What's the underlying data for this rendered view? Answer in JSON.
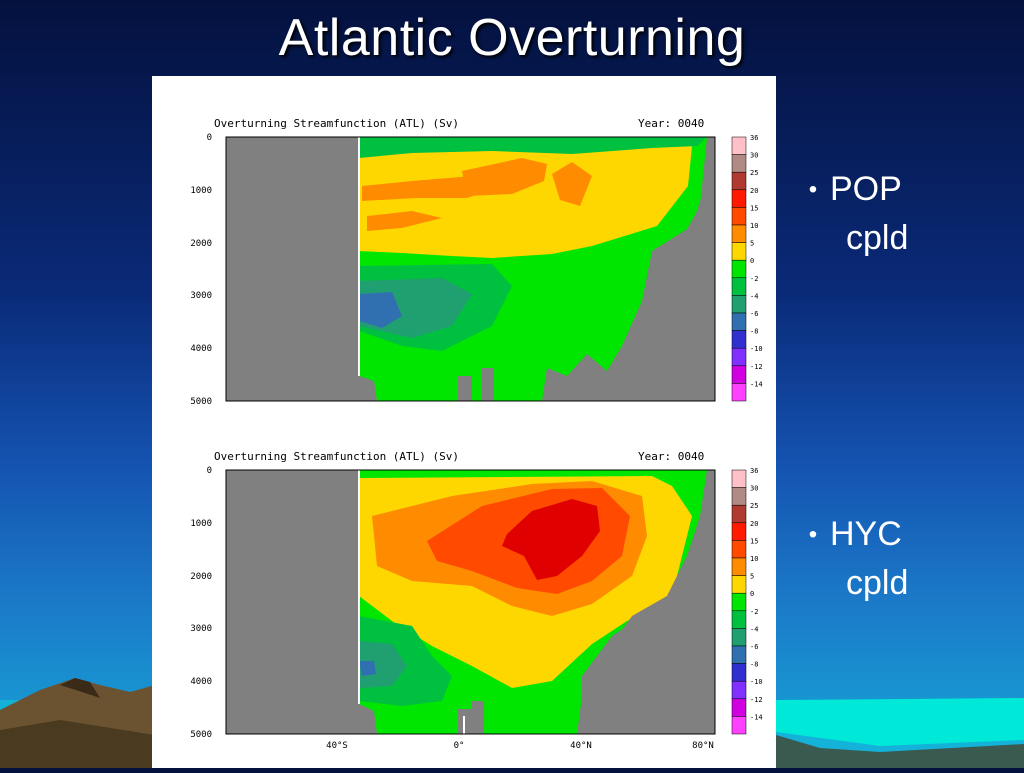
{
  "slide": {
    "title": "Atlantic Overturning"
  },
  "bullets": [
    {
      "label": "POP",
      "sub": "cpld"
    },
    {
      "label": "HYC",
      "sub": "cpld"
    }
  ],
  "panels": [
    {
      "title": "Overturning Streamfunction (ATL) (Sv)",
      "year_label": "Year: 0040",
      "y_ticks": [
        "0",
        "1000",
        "2000",
        "3000",
        "4000",
        "5000"
      ],
      "colorbar_labels": [
        "36",
        "30",
        "25",
        "20",
        "15",
        "10",
        "5",
        "0",
        "-2",
        "-4",
        "-6",
        "-8",
        "-10",
        "-12",
        "-14"
      ]
    },
    {
      "title": "Overturning Streamfunction (ATL) (Sv)",
      "year_label": "Year: 0040",
      "y_ticks": [
        "0",
        "1000",
        "2000",
        "3000",
        "4000",
        "5000"
      ],
      "x_ticks": [
        "40°S",
        "0°",
        "40°N",
        "80°N"
      ],
      "colorbar_labels": [
        "36",
        "30",
        "25",
        "20",
        "15",
        "10",
        "5",
        "0",
        "-2",
        "-4",
        "-6",
        "-8",
        "-10",
        "-12",
        "-14"
      ]
    }
  ],
  "colors": {
    "land": "#808080",
    "scale": [
      "#ffc0c8",
      "#b08a84",
      "#b03a30",
      "#ff1a00",
      "#ff4a00",
      "#ff8c00",
      "#ffd700",
      "#00e600",
      "#00c040",
      "#20a070",
      "#3070b0",
      "#3030d0",
      "#8030ff",
      "#d000e0",
      "#ff40ff"
    ]
  }
}
